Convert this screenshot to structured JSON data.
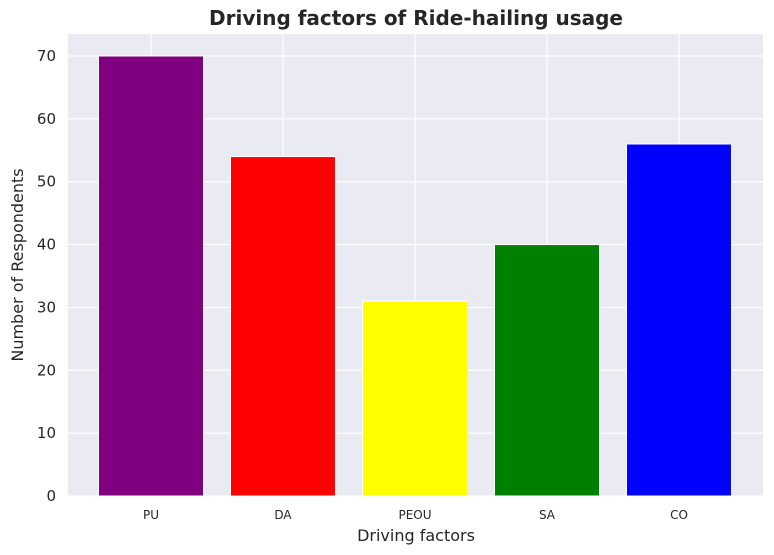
{
  "chart_data": {
    "type": "bar",
    "title": "Driving factors of Ride-hailing usage",
    "xlabel": "Driving factors",
    "ylabel": "Number of Respondents",
    "categories": [
      "PU",
      "DA",
      "PEOU",
      "SA",
      "CO"
    ],
    "values": [
      70,
      54,
      31,
      40,
      56
    ],
    "colors": [
      "#800080",
      "#ff0000",
      "#ffff00",
      "#008000",
      "#0000ff"
    ],
    "ylim": [
      0,
      73.5
    ],
    "yticks": [
      0,
      10,
      20,
      30,
      40,
      50,
      60,
      70
    ],
    "grid": true,
    "background": "#eaeaf2",
    "legend": "none"
  }
}
